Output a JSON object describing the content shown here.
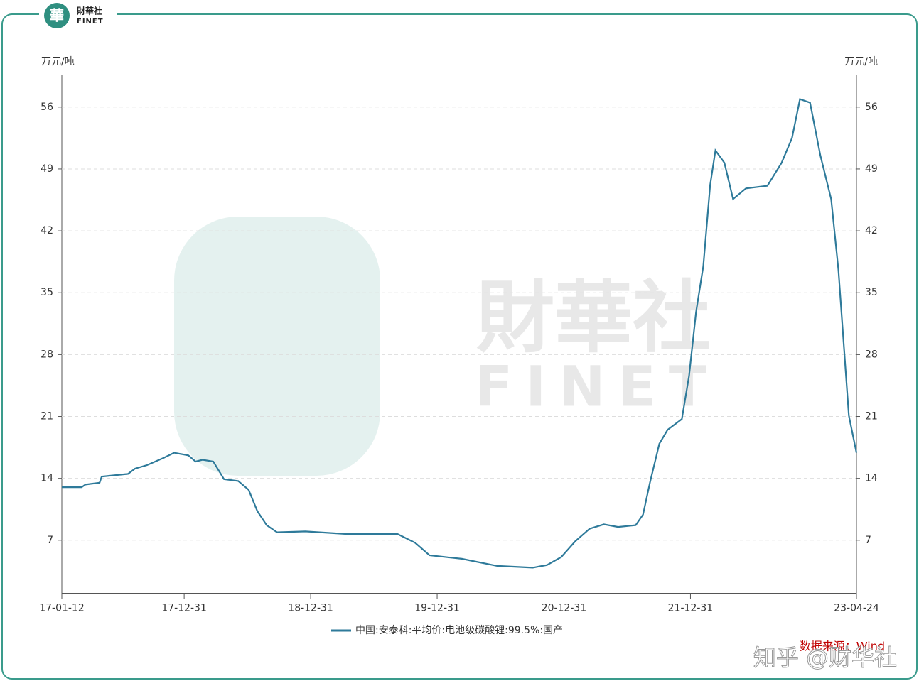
{
  "brand": {
    "name": "財華社",
    "latin": "FINET"
  },
  "chart_data": {
    "type": "line",
    "y_unit": "万元/吨",
    "y2_unit": "万元/吨",
    "x": [
      "17-01-12",
      "17-03-10",
      "17-03-21",
      "17-05-01",
      "17-05-07",
      "17-07-22",
      "17-08-11",
      "17-09-15",
      "17-11-01",
      "17-12-02",
      "18-01-12",
      "18-02-02",
      "18-02-22",
      "18-03-25",
      "18-04-25",
      "18-06-05",
      "18-07-05",
      "18-07-30",
      "18-08-26",
      "18-09-25",
      "18-12-16",
      "19-04-17",
      "19-09-08",
      "19-10-29",
      "19-12-09",
      "20-03-11",
      "20-06-21",
      "20-10-02",
      "20-11-12",
      "20-12-23",
      "21-02-02",
      "21-03-15",
      "21-04-25",
      "21-06-05",
      "21-07-26",
      "21-08-16",
      "21-09-05",
      "21-10-02",
      "21-10-26",
      "21-12-06",
      "21-12-27",
      "22-01-16",
      "22-02-06",
      "22-02-26",
      "22-03-13",
      "22-04-08",
      "22-05-03",
      "22-06-09",
      "22-08-10",
      "22-09-20",
      "22-10-20",
      "22-11-12",
      "22-12-11",
      "23-01-10",
      "23-02-10",
      "23-03-03",
      "23-04-02",
      "23-04-24"
    ],
    "series": [
      {
        "name": "中国:安泰科:平均价:电池级碳酸锂:99.5%:国产",
        "color": "#2e7a9a",
        "values": [
          13.0,
          13.0,
          13.3,
          13.5,
          14.2,
          14.5,
          15.1,
          15.5,
          16.3,
          16.9,
          16.6,
          15.9,
          16.1,
          15.9,
          13.9,
          13.7,
          12.7,
          10.3,
          8.7,
          7.9,
          8.0,
          7.7,
          7.7,
          6.7,
          5.3,
          4.9,
          4.1,
          3.9,
          4.2,
          5.1,
          6.9,
          8.3,
          8.8,
          8.5,
          8.7,
          9.9,
          13.5,
          17.9,
          19.5,
          20.7,
          25.6,
          32.8,
          38.0,
          47.2,
          51.1,
          49.7,
          45.6,
          46.8,
          47.1,
          49.7,
          52.5,
          56.9,
          56.5,
          50.5,
          45.6,
          37.6,
          21.1,
          16.9
        ]
      }
    ],
    "xlim": [
      "17-01-12",
      "23-04-24"
    ],
    "xticks": [
      "17-01-12",
      "17-12-31",
      "18-12-31",
      "19-12-31",
      "20-12-31",
      "21-12-31",
      "23-04-24"
    ],
    "ylim": [
      1,
      60
    ],
    "yticks": [
      7,
      14,
      21,
      28,
      35,
      42,
      49,
      56
    ],
    "grid": true,
    "source": "数据来源：Wind"
  },
  "watermark": "知乎 @财华社"
}
